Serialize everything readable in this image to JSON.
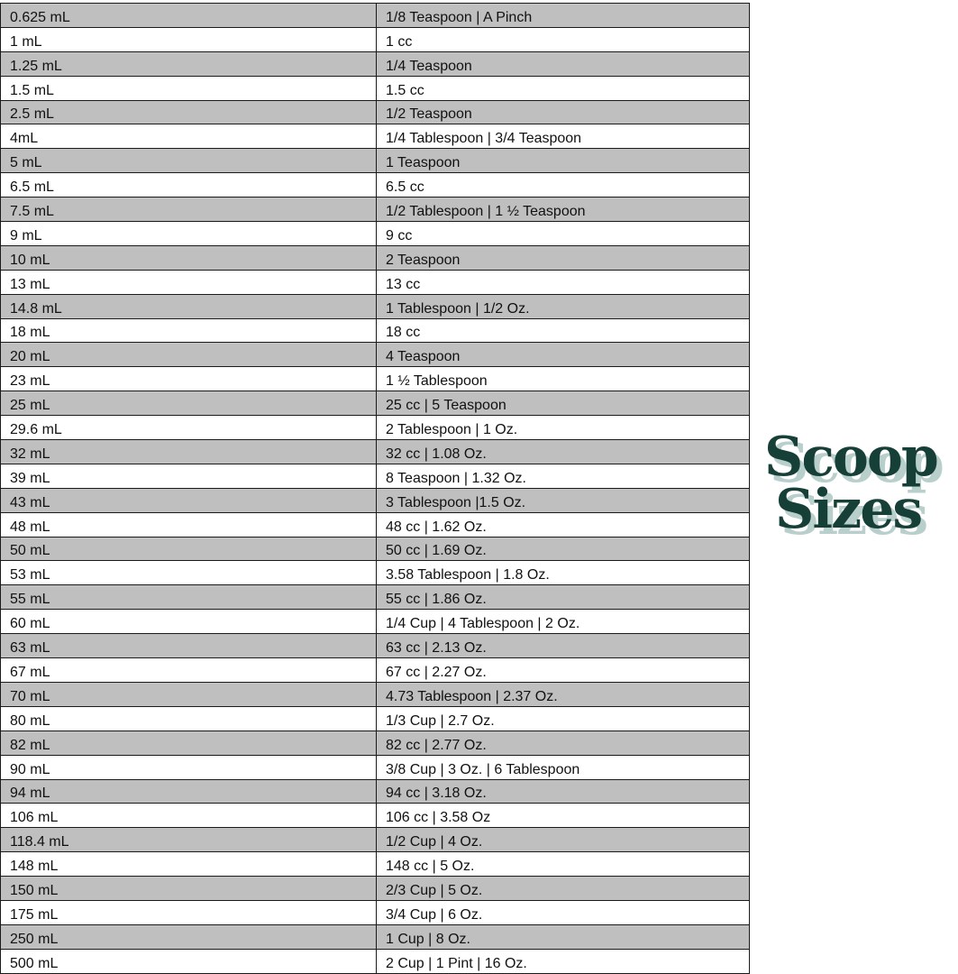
{
  "rows": [
    [
      "0.625 mL",
      "1/8 Teaspoon | A Pinch"
    ],
    [
      "1 mL",
      "1 cc"
    ],
    [
      "1.25 mL",
      "1/4 Teaspoon"
    ],
    [
      "1.5 mL",
      "1.5 cc"
    ],
    [
      "2.5 mL",
      "1/2 Teaspoon"
    ],
    [
      "4mL",
      "1/4 Tablespoon | 3/4 Teaspoon"
    ],
    [
      "5 mL",
      "1 Teaspoon"
    ],
    [
      "6.5 mL",
      "6.5 cc"
    ],
    [
      "7.5 mL",
      "1/2 Tablespoon | 1 ½ Teaspoon"
    ],
    [
      "9 mL",
      "9 cc"
    ],
    [
      "10 mL",
      "2 Teaspoon"
    ],
    [
      "13 mL",
      "13 cc"
    ],
    [
      "14.8 mL",
      "1 Tablespoon | 1/2 Oz."
    ],
    [
      "18 mL",
      "18 cc"
    ],
    [
      "20 mL",
      "4 Teaspoon"
    ],
    [
      "23 mL",
      "1 ½ Tablespoon"
    ],
    [
      "25 mL",
      "25 cc | 5 Teaspoon"
    ],
    [
      "29.6 mL",
      "2 Tablespoon | 1 Oz."
    ],
    [
      "32 mL",
      "32 cc | 1.08 Oz."
    ],
    [
      "39 mL",
      "8 Teaspoon | 1.32 Oz."
    ],
    [
      "43 mL",
      "3 Tablespoon |1.5 Oz."
    ],
    [
      "48 mL",
      "48 cc | 1.62 Oz."
    ],
    [
      "50 mL",
      "50 cc | 1.69 Oz."
    ],
    [
      "53 mL",
      "3.58 Tablespoon | 1.8 Oz."
    ],
    [
      "55 mL",
      "55 cc | 1.86 Oz."
    ],
    [
      "60 mL",
      "1/4 Cup | 4 Tablespoon | 2 Oz."
    ],
    [
      "63 mL",
      "63 cc | 2.13 Oz."
    ],
    [
      "67 mL",
      "67 cc | 2.27 Oz."
    ],
    [
      "70 mL",
      "4.73 Tablespoon | 2.37 Oz."
    ],
    [
      "80 mL",
      "1/3 Cup | 2.7 Oz."
    ],
    [
      "82 mL",
      "82 cc | 2.77 Oz."
    ],
    [
      "90 mL",
      "3/8 Cup | 3 Oz. | 6 Tablespoon"
    ],
    [
      "94 mL",
      "94 cc | 3.18 Oz."
    ],
    [
      "106 mL",
      "106 cc | 3.58 Oz"
    ],
    [
      "118.4 mL",
      "1/2 Cup | 4 Oz."
    ],
    [
      "148 mL",
      "148 cc | 5 Oz."
    ],
    [
      "150 mL",
      "2/3 Cup | 5 Oz."
    ],
    [
      "175 mL",
      "3/4 Cup | 6 Oz."
    ],
    [
      "250 mL",
      "1 Cup | 8 Oz."
    ],
    [
      "500 mL",
      "2 Cup | 1 Pint | 16 Oz."
    ]
  ],
  "logo": {
    "line1": "Scoop",
    "line2": "Sizes",
    "color": "#163f37",
    "shadow_color": "#b9cfcc"
  },
  "colors": {
    "stripe": "#bfbfbf"
  }
}
